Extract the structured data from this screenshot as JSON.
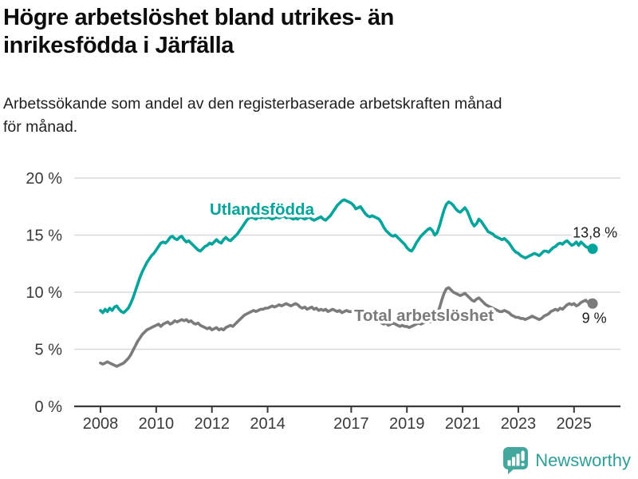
{
  "chart_data": {
    "type": "line",
    "title": "Högre arbetslöshet bland utrikes- än\ninrikesfödda i Järfälla",
    "subtitle": "Arbetssökande som andel av den registerbaserade arbetskraften månad\nför månad.",
    "grid": true,
    "legend_position": "inline-labels",
    "ylim": [
      0,
      20
    ],
    "y_ticks": [
      0,
      5,
      10,
      15,
      20
    ],
    "y_tick_labels": [
      "0 %",
      "5 %",
      "10 %",
      "15 %",
      "20 %"
    ],
    "x_tick_years": [
      2008,
      2010,
      2012,
      2014,
      2017,
      2019,
      2021,
      2023,
      2025
    ],
    "x_tick_labels": [
      "2008",
      "2010",
      "2012",
      "2014",
      "2017",
      "2019",
      "2021",
      "2023",
      "2025"
    ],
    "x_start_year": 2008,
    "points_per_year": 12,
    "series": [
      {
        "name": "Utlandsfödda",
        "color": "#00a49a",
        "end_value": 13.8,
        "end_label": "13,8 %",
        "values": [
          8.4,
          8.2,
          8.5,
          8.3,
          8.6,
          8.4,
          8.7,
          8.8,
          8.5,
          8.3,
          8.2,
          8.4,
          8.6,
          9.0,
          9.5,
          10.1,
          10.7,
          11.3,
          11.8,
          12.2,
          12.6,
          12.9,
          13.2,
          13.4,
          13.7,
          14.0,
          14.3,
          14.4,
          14.3,
          14.5,
          14.8,
          14.9,
          14.7,
          14.6,
          14.8,
          14.9,
          14.6,
          14.4,
          14.5,
          14.3,
          14.1,
          13.9,
          13.7,
          13.6,
          13.8,
          14.0,
          14.1,
          14.3,
          14.2,
          14.4,
          14.6,
          14.4,
          14.3,
          14.6,
          14.8,
          14.6,
          14.5,
          14.7,
          14.9,
          15.1,
          15.4,
          15.7,
          16.0,
          16.3,
          16.5,
          16.6,
          16.5,
          16.4,
          16.6,
          16.5,
          16.6,
          16.5,
          16.6,
          16.5,
          16.4,
          16.5,
          16.6,
          16.5,
          16.6,
          16.7,
          16.5,
          16.6,
          16.5,
          16.4,
          16.5,
          16.4,
          16.6,
          16.5,
          16.4,
          16.5,
          16.6,
          16.4,
          16.3,
          16.4,
          16.5,
          16.6,
          16.4,
          16.3,
          16.5,
          16.7,
          17.0,
          17.3,
          17.6,
          17.8,
          18.0,
          18.1,
          18.0,
          17.9,
          17.8,
          17.6,
          17.3,
          17.4,
          17.5,
          17.2,
          16.9,
          16.7,
          16.6,
          16.7,
          16.6,
          16.5,
          16.4,
          16.1,
          15.7,
          15.4,
          15.2,
          15.0,
          14.9,
          15.0,
          14.8,
          14.6,
          14.4,
          14.2,
          13.9,
          13.7,
          13.6,
          13.9,
          14.3,
          14.6,
          14.9,
          15.1,
          15.3,
          15.5,
          15.6,
          15.4,
          15.0,
          15.2,
          15.8,
          16.5,
          17.2,
          17.7,
          17.9,
          17.8,
          17.6,
          17.3,
          17.1,
          17.0,
          17.2,
          17.4,
          17.1,
          16.6,
          16.1,
          15.8,
          16.0,
          16.4,
          16.2,
          15.9,
          15.6,
          15.3,
          15.2,
          15.1,
          14.9,
          14.8,
          14.7,
          14.6,
          14.7,
          14.5,
          14.3,
          14.0,
          13.7,
          13.5,
          13.4,
          13.2,
          13.1,
          13.0,
          13.1,
          13.2,
          13.3,
          13.4,
          13.3,
          13.2,
          13.4,
          13.6,
          13.6,
          13.5,
          13.7,
          13.9,
          14.0,
          14.2,
          14.3,
          14.2,
          14.4,
          14.5,
          14.3,
          14.1,
          14.2,
          14.4,
          14.1,
          14.4,
          14.2,
          14.0,
          13.9,
          13.9,
          13.8
        ]
      },
      {
        "name": "Total arbetslöshet",
        "color": "#7b7b7b",
        "end_value": 9.0,
        "end_label": "9 %",
        "values": [
          3.8,
          3.7,
          3.8,
          3.9,
          3.8,
          3.7,
          3.6,
          3.5,
          3.6,
          3.7,
          3.8,
          4.0,
          4.2,
          4.5,
          4.9,
          5.3,
          5.7,
          6.0,
          6.3,
          6.5,
          6.7,
          6.8,
          6.9,
          7.0,
          7.1,
          7.2,
          7.0,
          7.2,
          7.3,
          7.4,
          7.2,
          7.3,
          7.5,
          7.4,
          7.5,
          7.6,
          7.5,
          7.6,
          7.4,
          7.5,
          7.3,
          7.2,
          7.3,
          7.1,
          7.0,
          6.9,
          6.8,
          6.9,
          6.7,
          6.8,
          6.9,
          6.7,
          6.8,
          6.7,
          6.9,
          7.0,
          7.1,
          7.0,
          7.2,
          7.4,
          7.6,
          7.8,
          8.0,
          8.1,
          8.2,
          8.3,
          8.4,
          8.3,
          8.4,
          8.5,
          8.5,
          8.6,
          8.6,
          8.7,
          8.8,
          8.7,
          8.8,
          8.9,
          8.8,
          8.9,
          9.0,
          8.9,
          8.8,
          8.9,
          9.0,
          8.9,
          8.7,
          8.6,
          8.7,
          8.5,
          8.6,
          8.7,
          8.5,
          8.6,
          8.4,
          8.5,
          8.4,
          8.5,
          8.3,
          8.4,
          8.5,
          8.4,
          8.3,
          8.4,
          8.2,
          8.3,
          8.4,
          8.3,
          8.3,
          8.4,
          8.2,
          8.3,
          8.1,
          8.0,
          7.9,
          8.0,
          7.8,
          7.7,
          7.8,
          7.6,
          7.5,
          7.3,
          7.2,
          7.3,
          7.1,
          7.2,
          7.3,
          7.2,
          7.1,
          7.0,
          7.1,
          7.0,
          7.0,
          6.9,
          7.0,
          7.1,
          7.2,
          7.3,
          7.2,
          7.3,
          7.4,
          7.5,
          7.4,
          7.5,
          7.7,
          8.0,
          8.6,
          9.3,
          9.9,
          10.3,
          10.4,
          10.2,
          10.0,
          9.9,
          9.8,
          9.7,
          9.8,
          9.9,
          9.7,
          9.5,
          9.3,
          9.2,
          9.4,
          9.5,
          9.3,
          9.1,
          8.9,
          8.8,
          8.7,
          8.6,
          8.5,
          8.4,
          8.3,
          8.3,
          8.4,
          8.3,
          8.2,
          8.0,
          7.9,
          7.8,
          7.8,
          7.7,
          7.7,
          7.6,
          7.7,
          7.8,
          7.9,
          7.8,
          7.7,
          7.6,
          7.7,
          7.9,
          8.0,
          8.1,
          8.3,
          8.4,
          8.5,
          8.4,
          8.6,
          8.5,
          8.7,
          8.9,
          9.0,
          8.9,
          9.0,
          8.8,
          8.9,
          9.1,
          9.2,
          9.3,
          9.1,
          9.3,
          9.0
        ]
      }
    ]
  },
  "footer": {
    "brand": "Newsworthy",
    "brand_color": "#2f9e96",
    "logo_icon": "bar-chart-speech-bubble-icon",
    "logo_color": "#43a79e"
  }
}
